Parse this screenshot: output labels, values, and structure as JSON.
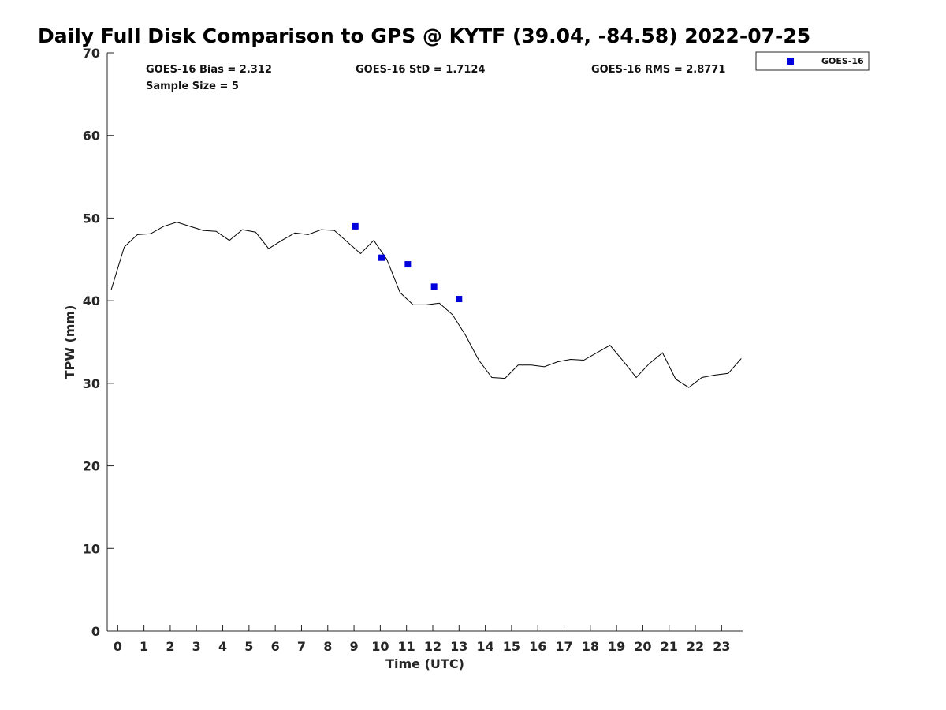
{
  "chart_data": {
    "type": "line",
    "title": "Daily Full Disk Comparison to GPS @ KYTF (39.04, -84.58) 2022-07-25",
    "xlabel": "Time (UTC)",
    "ylabel": "TPW (mm)",
    "xlim": [
      -0.4,
      23.8
    ],
    "ylim": [
      0,
      70
    ],
    "x_ticks": [
      "0",
      "1",
      "2",
      "3",
      "4",
      "5",
      "6",
      "7",
      "8",
      "9",
      "10",
      "11",
      "12",
      "13",
      "14",
      "15",
      "16",
      "17",
      "18",
      "19",
      "20",
      "21",
      "22",
      "23"
    ],
    "y_ticks": [
      "0",
      "10",
      "20",
      "30",
      "40",
      "50",
      "60",
      "70"
    ],
    "grid": false,
    "legend": {
      "position": "top-right",
      "entries": [
        "GOES-16"
      ]
    },
    "stats": {
      "bias": "GOES-16 Bias = 2.312",
      "std": "GOES-16 StD = 1.7124",
      "rms": "GOES-16 RMS = 2.8771",
      "sample": "Sample Size = 5"
    },
    "series": [
      {
        "kind": "line",
        "color": "#000000",
        "x": [
          -0.25,
          0.25,
          0.75,
          1.25,
          1.75,
          2.25,
          2.75,
          3.25,
          3.75,
          4.25,
          4.75,
          5.25,
          5.75,
          6.25,
          6.75,
          7.25,
          7.75,
          8.25,
          8.75,
          9.25,
          9.75,
          10.25,
          10.75,
          11.25,
          11.75,
          12.25,
          12.75,
          13.25,
          13.75,
          14.25,
          14.75,
          15.25,
          15.75,
          16.25,
          16.75,
          17.25,
          17.75,
          18.25,
          18.75,
          19.25,
          19.75,
          20.25,
          20.75,
          21.25,
          21.75,
          22.25,
          22.75,
          23.25,
          23.75
        ],
        "y": [
          41.3,
          46.5,
          48.0,
          48.1,
          49.0,
          49.5,
          49.0,
          48.5,
          48.4,
          47.3,
          48.6,
          48.3,
          46.3,
          47.3,
          48.2,
          48.0,
          48.6,
          48.5,
          47.1,
          45.7,
          47.3,
          45.0,
          41.0,
          39.5,
          39.5,
          39.7,
          38.3,
          35.8,
          32.8,
          30.7,
          30.6,
          32.2,
          32.2,
          32.0,
          32.6,
          32.9,
          32.8,
          33.7,
          34.6,
          32.7,
          30.7,
          32.4,
          33.7,
          30.5,
          29.5,
          30.7,
          31.0,
          31.2,
          33.0
        ]
      },
      {
        "kind": "scatter",
        "name": "GOES-16",
        "color": "#0000dd",
        "x": [
          9.05,
          10.05,
          11.05,
          12.05,
          13.0
        ],
        "y": [
          49.0,
          45.2,
          44.4,
          41.7,
          40.2
        ]
      }
    ]
  }
}
